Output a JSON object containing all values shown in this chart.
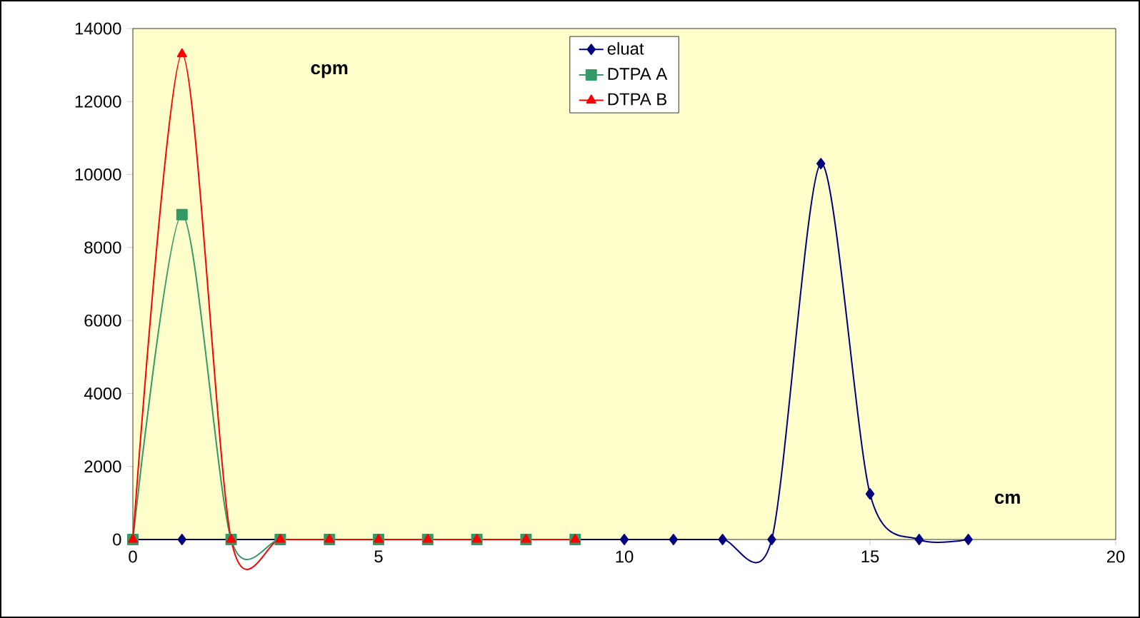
{
  "chart_data": {
    "type": "line",
    "xlabel": "cm",
    "ylabel": "cpm",
    "xlim": [
      0,
      20
    ],
    "xticks": [
      0,
      5,
      10,
      15,
      20
    ],
    "ylim": [
      0,
      14000
    ],
    "yticks": [
      0,
      2000,
      4000,
      6000,
      8000,
      10000,
      12000,
      14000
    ],
    "grid": false,
    "legend": "top",
    "line_style": "solid",
    "series": [
      {
        "name": "eluat",
        "color": "#000080",
        "marker": "diamond",
        "x": [
          0,
          1,
          2,
          3,
          4,
          5,
          6,
          7,
          8,
          9,
          10,
          11,
          12,
          13,
          14,
          15,
          16,
          17
        ],
        "values": [
          0,
          0,
          0,
          0,
          0,
          0,
          0,
          0,
          0,
          0,
          0,
          0,
          0,
          0,
          10300,
          1250,
          0,
          0
        ]
      },
      {
        "name": "DTPA A",
        "color": "#339966",
        "marker": "square",
        "x": [
          0,
          1,
          2,
          3,
          4,
          5,
          6,
          7,
          8,
          9
        ],
        "values": [
          0,
          8900,
          0,
          0,
          0,
          0,
          0,
          0,
          0,
          0
        ]
      },
      {
        "name": "DTPA B",
        "color": "#ff0000",
        "marker": "triangle",
        "x": [
          0,
          1,
          2,
          3,
          4,
          5,
          6,
          7,
          8,
          9
        ],
        "values": [
          0,
          13300,
          0,
          0,
          0,
          0,
          0,
          0,
          0,
          0
        ]
      }
    ]
  }
}
